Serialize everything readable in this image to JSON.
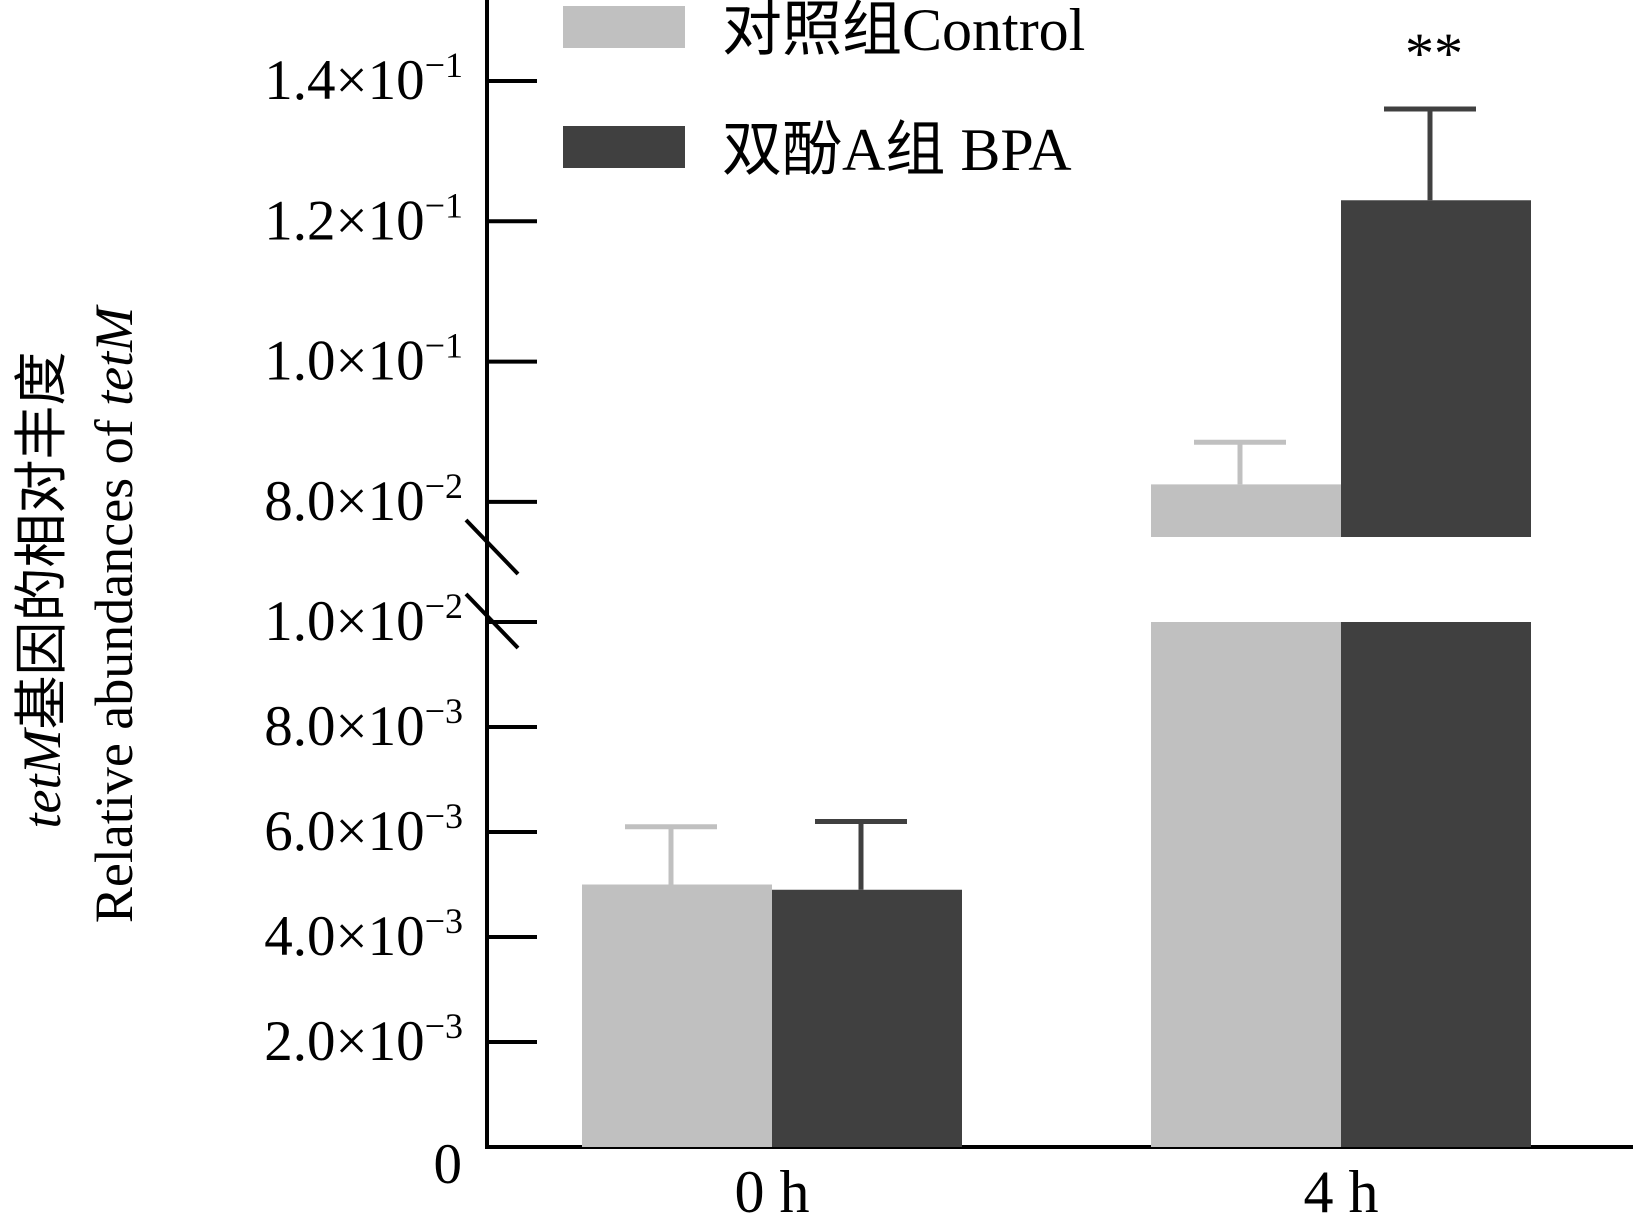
{
  "chart_data": {
    "type": "bar",
    "title": "",
    "xlabel": "",
    "ylabel_line1": "tetM基因的相对丰度",
    "ylabel_line1_italic": "tetM",
    "ylabel_line1_rest": "基因的相对丰度",
    "ylabel_line2_prefix": "Relative abundances of ",
    "ylabel_line2_italic": "tetM",
    "categories": [
      "0 h",
      "4 h"
    ],
    "series": [
      {
        "name": "对照组Control",
        "color": "#c0c0c0",
        "values": [
          0.005,
          0.0825
        ],
        "errors": [
          0.0011,
          0.006
        ]
      },
      {
        "name": "双酚A组 BPA",
        "color": "#404040",
        "values": [
          0.0049,
          0.123
        ],
        "errors": [
          0.0013,
          0.013
        ]
      }
    ],
    "axis_break": {
      "lower_max": 0.01,
      "upper_min": 0.075,
      "upper_max": 0.15
    },
    "y_ticks_lower": [
      {
        "value": 0,
        "mantissa": "0",
        "exp": ""
      },
      {
        "value": 0.002,
        "mantissa": "2.0×10",
        "exp": "−3"
      },
      {
        "value": 0.004,
        "mantissa": "4.0×10",
        "exp": "−3"
      },
      {
        "value": 0.006,
        "mantissa": "6.0×10",
        "exp": "−3"
      },
      {
        "value": 0.008,
        "mantissa": "8.0×10",
        "exp": "−3"
      },
      {
        "value": 0.01,
        "mantissa": "1.0×10",
        "exp": "−2"
      }
    ],
    "y_ticks_upper": [
      {
        "value": 0.08,
        "mantissa": "8.0×10",
        "exp": "−2"
      },
      {
        "value": 0.1,
        "mantissa": "1.0×10",
        "exp": "−1"
      },
      {
        "value": 0.12,
        "mantissa": "1.2×10",
        "exp": "−1"
      },
      {
        "value": 0.14,
        "mantissa": "1.4×10",
        "exp": "−1"
      }
    ],
    "annotations": [
      {
        "category": "4 h",
        "series": "双酚A组 BPA",
        "text": "**"
      }
    ],
    "legend_position": "top-left",
    "grid": false
  }
}
